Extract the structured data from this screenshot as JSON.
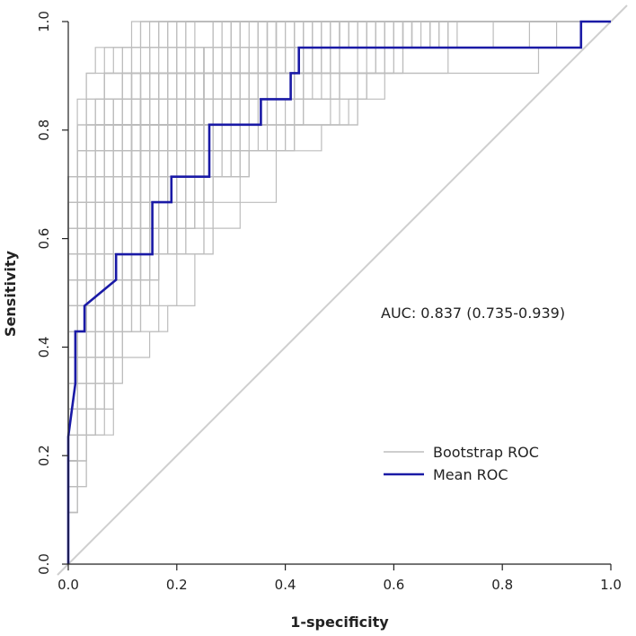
{
  "chart_data": {
    "type": "line",
    "title": "",
    "xlabel": "1-specificity",
    "ylabel": "Sensitivity",
    "xlim": [
      0,
      1
    ],
    "ylim": [
      0,
      1
    ],
    "xticks": [
      0.0,
      0.2,
      0.4,
      0.6,
      0.8,
      1.0
    ],
    "yticks": [
      0.0,
      0.2,
      0.4,
      0.6,
      0.8,
      1.0
    ],
    "xtick_labels": [
      "0.0",
      "0.2",
      "0.4",
      "0.6",
      "0.8",
      "1.0"
    ],
    "ytick_labels": [
      "0.0",
      "0.2",
      "0.4",
      "0.6",
      "0.8",
      "1.0"
    ],
    "annotation": "AUC: 0.837 (0.735-0.939)",
    "legend": {
      "placement": "bottom-right",
      "entries": [
        {
          "label": "Bootstrap ROC",
          "color": "#bdbdbd"
        },
        {
          "label": "Mean ROC",
          "color": "#1a1aa6"
        }
      ]
    },
    "reference_line": {
      "x": [
        0,
        1
      ],
      "y": [
        0,
        1
      ],
      "color": "#cfcfcf"
    },
    "series": [
      {
        "name": "Mean ROC",
        "color": "#1a1aa6",
        "x": [
          0.0,
          0.0,
          0.013,
          0.013,
          0.03,
          0.03,
          0.088,
          0.088,
          0.155,
          0.155,
          0.19,
          0.19,
          0.26,
          0.26,
          0.355,
          0.355,
          0.41,
          0.41,
          0.425,
          0.425,
          0.945,
          0.945,
          1.0
        ],
        "y": [
          0.0,
          0.235,
          0.333,
          0.429,
          0.429,
          0.476,
          0.524,
          0.571,
          0.571,
          0.667,
          0.667,
          0.714,
          0.714,
          0.81,
          0.81,
          0.857,
          0.857,
          0.905,
          0.905,
          0.952,
          0.952,
          1.0,
          1.0
        ]
      }
    ],
    "bootstrap_count": 140
  }
}
